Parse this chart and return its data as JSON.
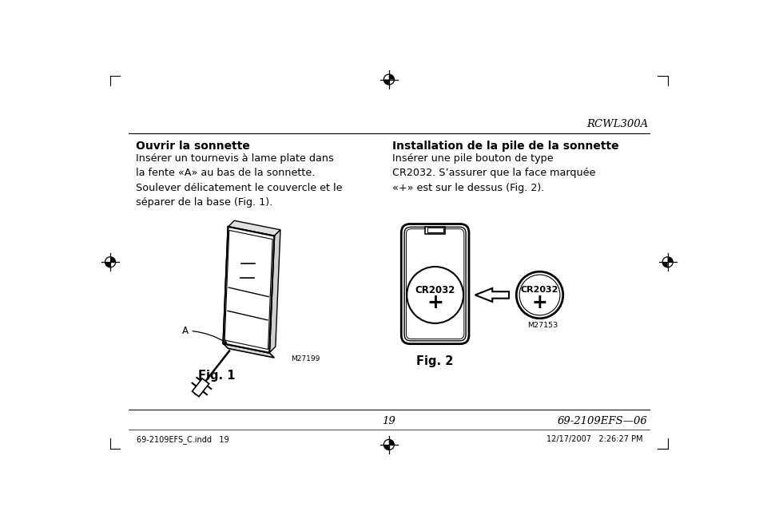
{
  "bg_color": "#ffffff",
  "text_color": "#000000",
  "page_title": "RCWL300A",
  "section1_title": "Ouvrir la sonnette",
  "section1_body": "Insérer un tournevis à lame plate dans\nla fente «A» au bas de la sonnette.\nSoulever délicatement le couvercle et le\nséparer de la base (Fig. 1).",
  "section2_title": "Installation de la pile de la sonnette",
  "section2_body": "Insérer une pile bouton de type\nCR2032. S’assurer que la face marquée\n«+» est sur le dessus (Fig. 2).",
  "fig1_label": "Fig. 1",
  "fig2_label": "Fig. 2",
  "m27199_label": "M27199",
  "m27153_label": "M27153",
  "footer_left": "69-2109EFS_C.indd   19",
  "footer_center_page": "19",
  "footer_right_doc": "69-2109EFS—06",
  "footer_date": "12/17/2007   2:26:27 PM",
  "cr2032_text": "CR2032",
  "plus_text": "+"
}
